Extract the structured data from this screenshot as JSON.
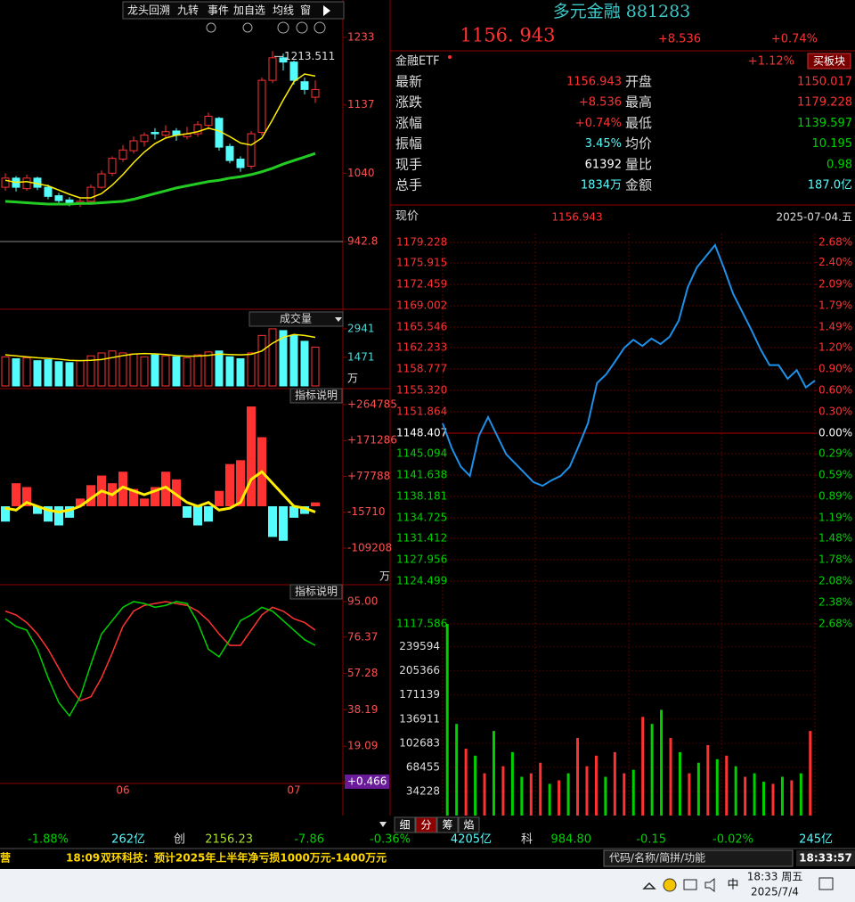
{
  "toolbar": {
    "items": [
      "龙头回溯",
      "九转",
      "事件",
      "加自选",
      "均线",
      "窗"
    ]
  },
  "kline": {
    "type": "candlestick",
    "categories": [
      null,
      null,
      null,
      null,
      null,
      null,
      null,
      null,
      null,
      null,
      null,
      "06",
      null,
      null,
      null,
      null,
      null,
      null,
      null,
      null,
      null,
      null,
      null,
      null,
      null,
      null,
      null,
      "07",
      null,
      null
    ],
    "candles": [
      [
        1020,
        1033,
        1040,
        1015
      ],
      [
        1033,
        1020,
        1036,
        1014
      ],
      [
        1018,
        1033,
        1038,
        1015
      ],
      [
        1033,
        1020,
        1035,
        1016
      ],
      [
        1020,
        1007,
        1024,
        1003
      ],
      [
        1008,
        1001,
        1012,
        996
      ],
      [
        1002,
        997,
        1006,
        993
      ],
      [
        996,
        1000,
        1004,
        992
      ],
      [
        1000,
        1020,
        1024,
        998
      ],
      [
        1020,
        1039,
        1044,
        1018
      ],
      [
        1040,
        1061,
        1064,
        1036
      ],
      [
        1060,
        1073,
        1080,
        1056
      ],
      [
        1072,
        1086,
        1092,
        1068
      ],
      [
        1085,
        1094,
        1098,
        1078
      ],
      [
        1098,
        1096,
        1104,
        1088
      ],
      [
        1094,
        1099,
        1108,
        1090
      ],
      [
        1100,
        1094,
        1104,
        1086
      ],
      [
        1092,
        1096,
        1106,
        1088
      ],
      [
        1096,
        1109,
        1114,
        1092
      ],
      [
        1108,
        1121,
        1126,
        1102
      ],
      [
        1118,
        1077,
        1120,
        1072
      ],
      [
        1078,
        1058,
        1082,
        1054
      ],
      [
        1060,
        1048,
        1064,
        1042
      ],
      [
        1050,
        1096,
        1100,
        1046
      ],
      [
        1098,
        1172,
        1176,
        1094
      ],
      [
        1172,
        1204,
        1213.511,
        1168
      ],
      [
        1204,
        1198,
        1210,
        1186
      ],
      [
        1198,
        1172,
        1200,
        1166
      ],
      [
        1170,
        1159,
        1176,
        1152
      ],
      [
        1148,
        1159,
        1172,
        1140
      ]
    ],
    "ma_short": [
      1030,
      1027,
      1028,
      1025,
      1022,
      1016,
      1010,
      1005,
      1005,
      1011,
      1023,
      1038,
      1055,
      1070,
      1082,
      1090,
      1094,
      1096,
      1099,
      1104,
      1100,
      1092,
      1083,
      1080,
      1090,
      1116,
      1144,
      1170,
      1181,
      1178
    ],
    "ma_long": [
      1000,
      999,
      998,
      997,
      996,
      996,
      996,
      997,
      997,
      998,
      999,
      1000,
      1003,
      1007,
      1011,
      1015,
      1019,
      1022,
      1025,
      1028,
      1030,
      1033,
      1035,
      1038,
      1042,
      1047,
      1053,
      1058,
      1063,
      1068
    ],
    "ylim": [
      849.1,
      1258.3
    ],
    "yticks": [
      1233,
      1137,
      1040,
      942.8
    ]
  },
  "volume": {
    "title": "成交量",
    "values": [
      1500,
      1400,
      1450,
      1300,
      1350,
      1250,
      1200,
      1300,
      1550,
      1700,
      1800,
      1700,
      1650,
      1500,
      1600,
      1550,
      1500,
      1450,
      1600,
      1750,
      1800,
      1500,
      1400,
      1700,
      2600,
      2941,
      2850,
      2600,
      2300,
      2000
    ],
    "ma": [
      1600,
      1550,
      1500,
      1450,
      1420,
      1380,
      1320,
      1300,
      1320,
      1360,
      1460,
      1560,
      1640,
      1670,
      1650,
      1620,
      1560,
      1530,
      1540,
      1570,
      1640,
      1620,
      1600,
      1630,
      1800,
      2200,
      2500,
      2650,
      2600,
      2500
    ],
    "ylim": [
      0,
      3810
    ],
    "yticks": [
      2941,
      1471
    ],
    "unit": "万"
  },
  "macd": {
    "button": "指标说明",
    "values": [
      -40000,
      60000,
      50000,
      -20000,
      -40000,
      -50000,
      -30000,
      20000,
      55000,
      80000,
      60000,
      90000,
      45000,
      20000,
      50000,
      90000,
      70000,
      -30000,
      -50000,
      -40000,
      40000,
      110000,
      120000,
      260000,
      180000,
      -80000,
      -90000,
      -30000,
      -20000,
      10000
    ],
    "dif": [
      -5000,
      -10000,
      10000,
      0,
      -10000,
      -15000,
      -10000,
      0,
      20000,
      40000,
      30000,
      50000,
      40000,
      30000,
      40000,
      50000,
      30000,
      10000,
      0,
      10000,
      -10000,
      -5000,
      10000,
      70000,
      90000,
      60000,
      30000,
      0,
      -5000,
      -15000
    ],
    "ylim": [
      -202138,
      304276
    ],
    "yticks": [
      {
        "value": 264785,
        "label": "+264785"
      },
      {
        "value": 171286,
        "label": "+171286"
      },
      {
        "value": 77788,
        "label": "+77788"
      },
      -15710,
      -109208
    ],
    "unit": "万"
  },
  "kdj": {
    "button": "指标说明",
    "k": [
      90,
      88,
      84,
      78,
      70,
      60,
      50,
      43,
      45,
      55,
      68,
      82,
      90,
      93,
      94,
      95,
      94,
      93,
      90,
      85,
      78,
      72,
      72,
      80,
      88,
      92,
      90,
      86,
      84,
      80
    ],
    "d": [
      86,
      82,
      80,
      70,
      55,
      42,
      35,
      45,
      62,
      78,
      85,
      92,
      95,
      94,
      92,
      93,
      95,
      94,
      84,
      70,
      66,
      75,
      85,
      88,
      92,
      90,
      85,
      80,
      75,
      72
    ],
    "ylim": [
      -0.94,
      103.4
    ],
    "yticks": [
      {
        "value": 95,
        "label": "95.00"
      },
      76.37,
      57.28,
      38.19,
      19.09,
      {
        "value": 0.466,
        "label": "+0.466"
      }
    ]
  },
  "quote": {
    "name": "多元金融 881283",
    "price": "1156. 943",
    "change": "+8.536",
    "change_pct": "+0.74%"
  },
  "etf": {
    "label": "金融ETF",
    "change": "+1.12%",
    "button": "买板块"
  },
  "stats": [
    [
      "最新",
      "1156.943",
      "开盘",
      "1150.017"
    ],
    [
      "涨跌",
      "+8.536",
      "最高",
      "1179.228"
    ],
    [
      "涨幅",
      "+0.74%",
      "最低",
      "1139.597"
    ],
    [
      "振幅",
      "3.45%",
      "均价",
      "10.195"
    ],
    [
      "现手",
      "61392",
      "量比",
      "0.98"
    ],
    [
      "总手",
      "1834万",
      "金额",
      "187.0亿"
    ]
  ],
  "intraday": {
    "type": "line",
    "label": "现价",
    "price": "1156.943",
    "date": "2025-07-04.五",
    "color": "#1e90e8",
    "values": [
      1150.0,
      1146,
      1143,
      1141.5,
      1148,
      1151,
      1148,
      1145,
      1143.5,
      1142,
      1140.5,
      1139.9,
      1140.8,
      1141.5,
      1143,
      1146.4,
      1150,
      1156.5,
      1157.9,
      1160,
      1162.2,
      1163.5,
      1162.5,
      1163.7,
      1162.8,
      1164,
      1166.6,
      1172,
      1175.2,
      1177,
      1178.8,
      1175,
      1170.9,
      1168,
      1165.1,
      1162,
      1159.4,
      1159.4,
      1157.2,
      1158.6,
      1155.8,
      1156.9
    ],
    "base": 1148.407,
    "ylim": [
      1117.586,
      1179.228
    ],
    "yticks": [
      1179.228,
      1175.915,
      1172.459,
      1169.002,
      1165.546,
      1162.233,
      1158.777,
      {
        "value": 1155.32,
        "label": "1155.320"
      },
      1151.864,
      1148.407,
      1145.094,
      1141.638,
      1138.181,
      1134.725,
      1131.412,
      1127.956,
      1124.499,
      1117.586
    ],
    "y2lim": [
      -2.68,
      2.68
    ],
    "y2ticks": [
      {
        "value": 2.68,
        "label": "2.68%"
      },
      {
        "value": 2.4,
        "label": "2.40%"
      },
      {
        "value": 2.09,
        "label": "2.09%"
      },
      {
        "value": 1.79,
        "label": "1.79%"
      },
      {
        "value": 1.49,
        "label": "1.49%"
      },
      {
        "value": 1.2,
        "label": "1.20%"
      },
      {
        "value": 0.9,
        "label": "0.90%"
      },
      {
        "value": 0.6,
        "label": "0.60%"
      },
      {
        "value": 0.3,
        "label": "0.30%"
      },
      {
        "value": 0,
        "label": "0.00%"
      },
      {
        "value": -0.29,
        "label": "0.29%"
      },
      {
        "value": -0.59,
        "label": "0.59%"
      },
      {
        "value": -0.89,
        "label": "0.89%"
      },
      {
        "value": -1.19,
        "label": "1.19%"
      },
      {
        "value": -1.48,
        "label": "1.48%"
      },
      {
        "value": -1.78,
        "label": "1.78%"
      },
      {
        "value": -2.08,
        "label": "2.08%"
      },
      {
        "value": -2.38,
        "label": "2.38%"
      },
      {
        "value": -2.68,
        "label": "2.68%"
      }
    ]
  },
  "intraday_volume": {
    "values": [
      272000,
      130000,
      95000,
      85000,
      60000,
      120000,
      70000,
      90000,
      55000,
      60000,
      75000,
      45000,
      50000,
      60000,
      110000,
      70000,
      85000,
      55000,
      90000,
      60000,
      65000,
      140000,
      130000,
      150000,
      110000,
      90000,
      60000,
      75000,
      100000,
      80000,
      85000,
      70000,
      55000,
      60000,
      48000,
      45000,
      55000,
      50000,
      60000,
      120000
    ],
    "colors": [
      "#00d000",
      "#00d000",
      "#ff3232",
      "#00d000",
      "#ff3232",
      "#00d000",
      "#ff3232",
      "#00d000",
      "#00d000",
      "#ff3232",
      "#ff3232",
      "#00d000",
      "#ff3232",
      "#00d000",
      "#ff3232",
      "#ff3232",
      "#ff3232",
      "#00d000",
      "#ff3232",
      "#ff3232",
      "#00d000",
      "#ff3232",
      "#00d000",
      "#00d000",
      "#ff3232",
      "#00d000",
      "#ff3232",
      "#00d000",
      "#ff3232",
      "#00d000",
      "#ff3232",
      "#00d000",
      "#ff3232",
      "#00d000",
      "#00d000",
      "#ff3232",
      "#00d000",
      "#ff3232",
      "#00d000",
      "#ff3232"
    ],
    "ylim": [
      0,
      272000
    ],
    "yticks": [
      239594,
      205366,
      171139,
      136911,
      102683,
      68455,
      34228
    ]
  },
  "tabs": [
    "细",
    "分",
    "筹",
    "焰"
  ],
  "index_bar": [
    "-1.88%",
    "262亿",
    "创",
    "2156.23",
    "-7.86",
    "-0.36%",
    "4205亿",
    "科",
    "984.80",
    "-0.15",
    "-0.02%",
    "245亿"
  ],
  "news": {
    "cut": "营",
    "time": "18:09",
    "text": "双环科技：预计2025年上半年净亏损1000万元-1400万元"
  },
  "search_placeholder": "代码/名称/简拼/功能",
  "clock": "18:33:57",
  "taskbar": {
    "ime": "中",
    "time": "18:33 周五",
    "date": "2025/7/4"
  }
}
